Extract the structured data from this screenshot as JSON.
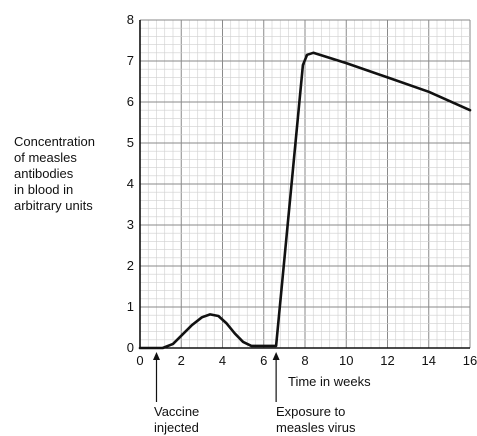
{
  "chart_data": {
    "type": "line",
    "ylabel_lines": [
      "Concentration",
      "of measles",
      "antibodies",
      "in blood in",
      "arbitrary units"
    ],
    "xlabel": "Time in weeks",
    "xlim": [
      0,
      16
    ],
    "ylim": [
      0,
      8
    ],
    "x_ticks": [
      "0",
      "2",
      "4",
      "6",
      "8",
      "10",
      "12",
      "14",
      "16"
    ],
    "y_ticks": [
      "0",
      "1",
      "2",
      "3",
      "4",
      "5",
      "6",
      "7",
      "8"
    ],
    "grid": true,
    "series": [
      {
        "x": [
          0,
          1.1,
          1.6,
          2.0,
          2.5,
          3.0,
          3.4,
          3.8,
          4.2,
          4.6,
          5.0,
          5.4,
          5.7,
          6.0,
          6.6,
          7.9,
          8.1,
          8.4,
          10,
          12,
          14,
          16
        ],
        "y": [
          0,
          0,
          0.1,
          0.3,
          0.55,
          0.75,
          0.82,
          0.78,
          0.6,
          0.35,
          0.15,
          0.05,
          0.05,
          0.05,
          0.05,
          6.9,
          7.15,
          7.2,
          6.95,
          6.6,
          6.25,
          5.8
        ]
      }
    ],
    "annotations": [
      {
        "x": 0.8,
        "text_lines": [
          "Vaccine",
          "injected"
        ]
      },
      {
        "x": 6.6,
        "text_lines": [
          "Exposure to",
          "measles virus"
        ]
      }
    ]
  }
}
